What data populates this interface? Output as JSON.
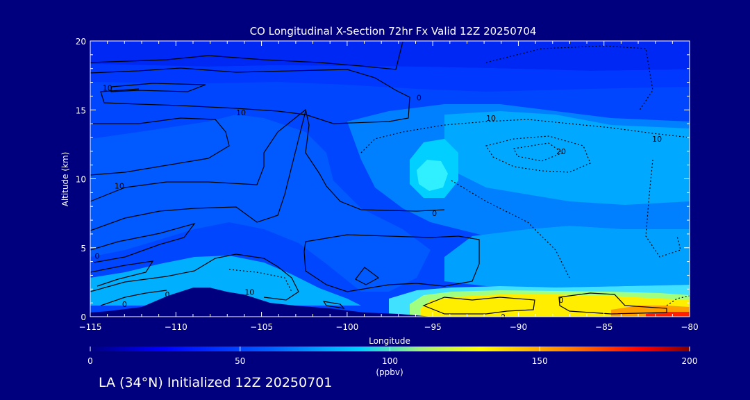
{
  "chart_data": {
    "type": "heatmap",
    "title": "CO Longitudinal X-Section 72hr  Fx Valid 12Z 20250704",
    "xlabel": "Longitude",
    "ylabel": "Altitude (km)",
    "xlim": [
      -115,
      -80
    ],
    "ylim": [
      0,
      20
    ],
    "x_ticks": [
      -115,
      -110,
      -105,
      -100,
      -95,
      -90,
      -85,
      -80
    ],
    "x_tick_labels": [
      "−115",
      "−110",
      "−105",
      "−100",
      "−95",
      "−90",
      "−85",
      "−80"
    ],
    "y_ticks": [
      0,
      5,
      10,
      15,
      20
    ],
    "y_tick_labels": [
      "0",
      "5",
      "10",
      "15",
      "20"
    ],
    "colorbar": {
      "min": 0,
      "max": 200,
      "ticks": [
        0,
        50,
        100,
        150,
        200
      ],
      "tick_labels": [
        "0",
        "50",
        "100",
        "150",
        "200"
      ],
      "label": "(ppbv)"
    },
    "contour_labels": [
      {
        "text": "10",
        "lon": -114.0,
        "alt": 16.6
      },
      {
        "text": "10",
        "lon": -106.2,
        "alt": 14.8
      },
      {
        "text": "10",
        "lon": -113.3,
        "alt": 9.5
      },
      {
        "text": "0",
        "lon": -114.6,
        "alt": 4.4
      },
      {
        "text": "0",
        "lon": -113.0,
        "alt": 0.9
      },
      {
        "text": "0",
        "lon": -110.5,
        "alt": 1.6
      },
      {
        "text": "10",
        "lon": -105.7,
        "alt": 1.8
      },
      {
        "text": "0",
        "lon": -95.8,
        "alt": 15.9
      },
      {
        "text": "0",
        "lon": -94.9,
        "alt": 7.5
      },
      {
        "text": "10",
        "lon": -91.6,
        "alt": 14.4
      },
      {
        "text": "20",
        "lon": -87.5,
        "alt": 12.0
      },
      {
        "text": "10",
        "lon": -81.9,
        "alt": 12.9
      },
      {
        "text": "0",
        "lon": -90.9,
        "alt": 0.0
      },
      {
        "text": "0",
        "lon": -87.5,
        "alt": 1.2
      }
    ],
    "terrain_km": [
      [
        -115.0,
        0.3
      ],
      [
        -114.0,
        0.4
      ],
      [
        -112.0,
        0.7
      ],
      [
        -110.5,
        1.5
      ],
      [
        -109.0,
        2.1
      ],
      [
        -108.0,
        2.1
      ],
      [
        -107.0,
        1.8
      ],
      [
        -106.0,
        1.6
      ],
      [
        -104.5,
        1.0
      ],
      [
        -103.0,
        0.8
      ],
      [
        -101.0,
        0.6
      ],
      [
        -99.0,
        0.3
      ],
      [
        -97.0,
        0.2
      ],
      [
        -95.0,
        0.0
      ],
      [
        -80.0,
        0.0
      ]
    ],
    "field": [
      {
        "value": 35,
        "region": "upper troposphere, whole section (background)"
      },
      {
        "value": 20,
        "region": "top layer above ~18 km"
      },
      {
        "value": 45,
        "region": "west, mid troposphere 2-16 km"
      },
      {
        "value": 60,
        "region": "east of -98, 5-15 km"
      },
      {
        "value": 80,
        "region": "plume near -95, 9-12 km"
      },
      {
        "value": 75,
        "region": "near-surface layer, west"
      },
      {
        "value": 130,
        "region": "boundary layer -97 to -81, 0-1.5 km"
      },
      {
        "value": 165,
        "region": "surface maxima near -85 and -89"
      }
    ]
  },
  "footer": {
    "text": "LA (34°N) Initialized 12Z 20250701"
  },
  "colors": {
    "background": "#00007f",
    "axis": "#ffffff",
    "terrain": "#00007f",
    "contour": "#000000"
  }
}
